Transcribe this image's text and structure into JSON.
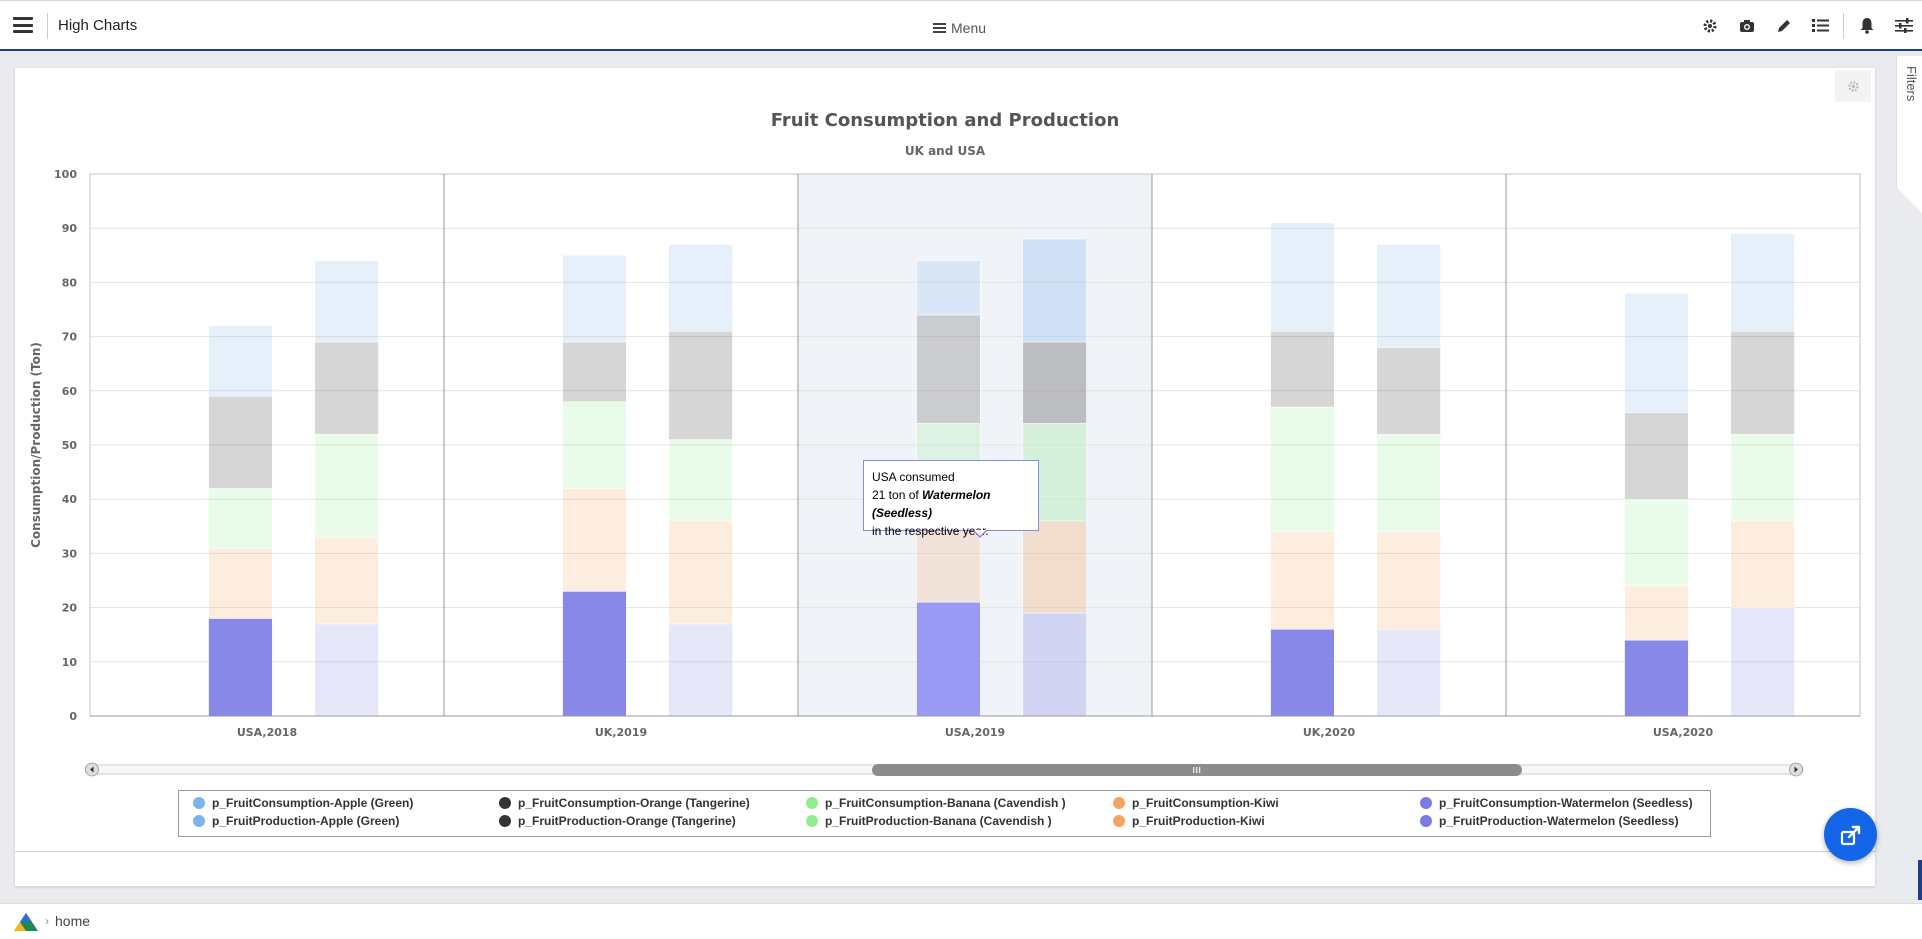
{
  "header": {
    "title": "High Charts",
    "menu_label": "Menu",
    "icons": [
      "settings-icon",
      "camera-icon",
      "pencil-icon",
      "list-icon",
      "bell-icon",
      "sliders-icon"
    ]
  },
  "filters_tab": {
    "label": "Filters"
  },
  "footer": {
    "breadcrumb": "home"
  },
  "tooltip": {
    "line1": "USA consumed",
    "line2_prefix": "21 ton of ",
    "line2_item": "Watermelon (Seedless)",
    "line3": "in the respective year."
  },
  "chart_data": {
    "type": "bar",
    "stacked": true,
    "title": "Fruit Consumption and Production",
    "subtitle": "UK and USA",
    "ylabel": "Consumption/Production (Ton)",
    "ylim": [
      0,
      100
    ],
    "yticks": [
      0,
      10,
      20,
      30,
      40,
      50,
      60,
      70,
      80,
      90,
      100
    ],
    "categories": [
      "USA,2018",
      "UK,2019",
      "USA,2019",
      "UK,2020",
      "USA,2020"
    ],
    "highlighted_category": "USA,2019",
    "grid": true,
    "legend_position": "bottom",
    "colors": {
      "Watermelon (Seedless)": "#7b7be6",
      "Kiwi": "#f4a460",
      "Banana (Cavendish )": "#90ee90",
      "Orange (Tangerine)": "#333333",
      "Apple (Green)": "#7cb5ec"
    },
    "series": [
      {
        "name": "p_FruitConsumption-Watermelon (Seedless)",
        "stack": "consumption",
        "fruit": "Watermelon (Seedless)",
        "values": [
          18,
          23,
          21,
          16,
          14
        ]
      },
      {
        "name": "p_FruitConsumption-Kiwi",
        "stack": "consumption",
        "fruit": "Kiwi",
        "values": [
          13,
          19,
          21,
          18,
          10
        ]
      },
      {
        "name": "p_FruitConsumption-Banana (Cavendish )",
        "stack": "consumption",
        "fruit": "Banana (Cavendish )",
        "values": [
          11,
          16,
          12,
          23,
          16
        ]
      },
      {
        "name": "p_FruitConsumption-Orange (Tangerine)",
        "stack": "consumption",
        "fruit": "Orange (Tangerine)",
        "values": [
          17,
          11,
          20,
          14,
          16
        ]
      },
      {
        "name": "p_FruitConsumption-Apple (Green)",
        "stack": "consumption",
        "fruit": "Apple (Green)",
        "values": [
          13,
          16,
          10,
          20,
          22
        ]
      },
      {
        "name": "p_FruitProduction-Watermelon (Seedless)",
        "stack": "production",
        "fruit": "Watermelon (Seedless)",
        "values": [
          17,
          17,
          19,
          16,
          20
        ]
      },
      {
        "name": "p_FruitProduction-Kiwi",
        "stack": "production",
        "fruit": "Kiwi",
        "values": [
          16,
          19,
          17,
          18,
          16
        ]
      },
      {
        "name": "p_FruitProduction-Banana (Cavendish )",
        "stack": "production",
        "fruit": "Banana (Cavendish )",
        "values": [
          19,
          15,
          18,
          18,
          16
        ]
      },
      {
        "name": "p_FruitProduction-Orange (Tangerine)",
        "stack": "production",
        "fruit": "Orange (Tangerine)",
        "values": [
          17,
          20,
          15,
          16,
          19
        ]
      },
      {
        "name": "p_FruitProduction-Apple (Green)",
        "stack": "production",
        "fruit": "Apple (Green)",
        "values": [
          15,
          16,
          19,
          19,
          18
        ]
      }
    ],
    "legend": [
      {
        "label": "p_FruitConsumption-Apple (Green)",
        "color": "#7cb5ec"
      },
      {
        "label": "p_FruitConsumption-Orange (Tangerine)",
        "color": "#333333"
      },
      {
        "label": "p_FruitConsumption-Banana (Cavendish )",
        "color": "#90ee90"
      },
      {
        "label": "p_FruitConsumption-Kiwi",
        "color": "#f4a460"
      },
      {
        "label": "p_FruitConsumption-Watermelon (Seedless)",
        "color": "#7b7be6"
      },
      {
        "label": "p_FruitProduction-Apple (Green)",
        "color": "#7cb5ec"
      },
      {
        "label": "p_FruitProduction-Orange (Tangerine)",
        "color": "#333333"
      },
      {
        "label": "p_FruitProduction-Banana (Cavendish )",
        "color": "#90ee90"
      },
      {
        "label": "p_FruitProduction-Kiwi",
        "color": "#f4a460"
      },
      {
        "label": "p_FruitProduction-Watermelon (Seedless)",
        "color": "#7b7be6"
      }
    ]
  }
}
